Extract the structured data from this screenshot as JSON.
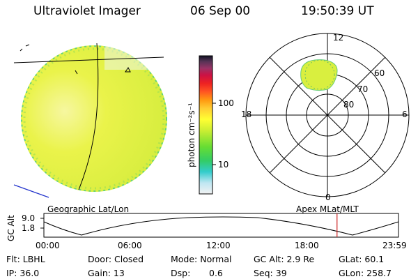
{
  "header": {
    "instrument": "Ultraviolet Imager",
    "date": "06 Sep 00",
    "time": "19:50:39 UT"
  },
  "colorbar": {
    "unit_label": "photon cm⁻²s⁻¹",
    "ticks": [
      "100",
      "10"
    ]
  },
  "polar_plot": {
    "mlt_labels": [
      "12",
      "18",
      "6",
      "0"
    ],
    "lat_labels": [
      "60",
      "70",
      "80"
    ]
  },
  "orbit_panel": {
    "left_title": "Geographic Lat/Lon",
    "right_title": "Apex MLat/MLT",
    "axis_label": "GC Alt",
    "y_ticks": [
      "9.0",
      "1.8"
    ],
    "x_ticks": [
      "00:00",
      "06:00",
      "12:00",
      "18:00",
      "23:59"
    ],
    "marker_time_hours": 19.84
  },
  "status": {
    "flt": "Flt: LBHL",
    "ip": "IP: 36.0",
    "door": "Door: Closed",
    "gain": "Gain: 13",
    "mode": "Mode: Normal",
    "dsp_label": "Dsp:",
    "dsp_value": "0.6",
    "gc_alt": "GC Alt: 2.9 Re",
    "seq": "Seq: 39",
    "glat": "GLat:  60.1",
    "glon": "GLon: 258.7"
  },
  "colors": {
    "disk": "#e6f23a",
    "oval": "#d9ef3f",
    "marker": "#cc2222",
    "edge_line": "#2233cc"
  }
}
